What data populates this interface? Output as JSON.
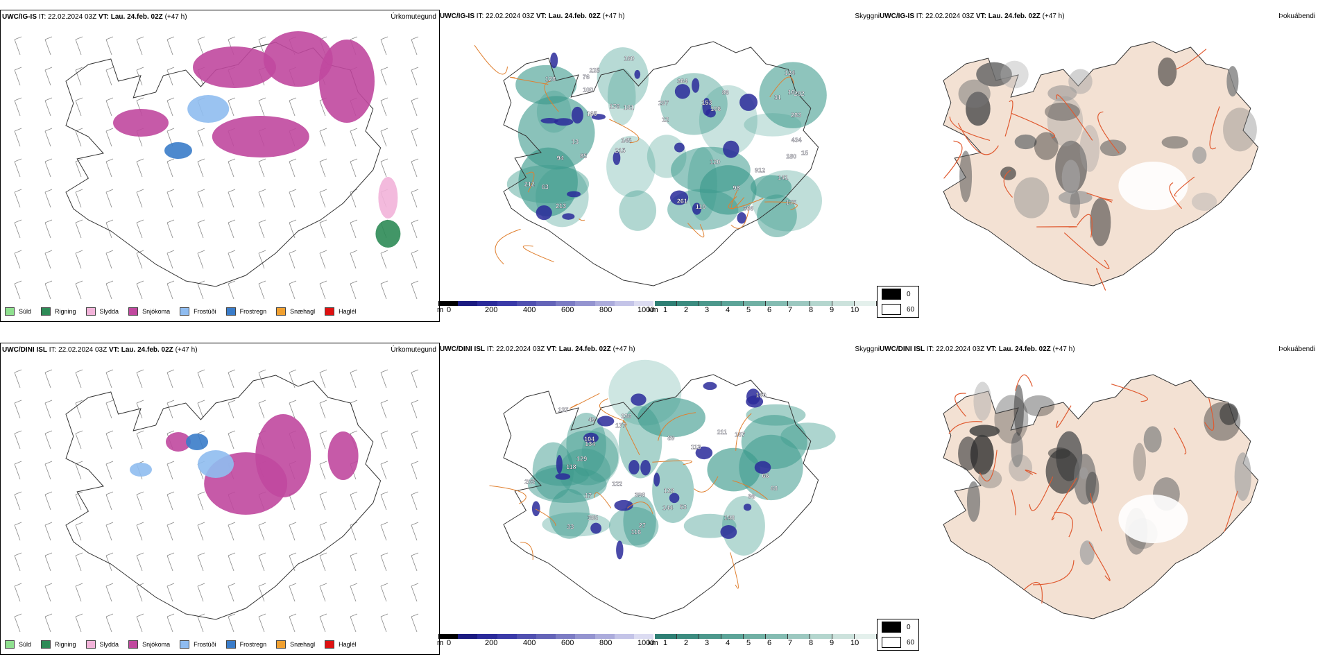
{
  "colors": {
    "sudl": "#8fe08f",
    "rigning": "#2e8b57",
    "slydda": "#f2b3d9",
    "snjokoma": "#c0489e",
    "frostudi": "#8fbcf0",
    "frostregn": "#3a7cc9",
    "snaehagl": "#f0a030",
    "haglel": "#e01010",
    "cloud_teal": "#3c9a8c",
    "ceiling_blue": "#2a2a9a",
    "road": "#e08030",
    "land": "#f3e1d3"
  },
  "rows": [
    {
      "model": "UWC/IG-IS",
      "it_label": "IT:",
      "it_value": "22.02.2024 03Z",
      "vt_label": "VT:",
      "vt_value": "Lau. 24.feb. 02Z",
      "lead": "(+47 h)",
      "title_precip": "Úrkomutegund",
      "title_cloud": "Skyggni",
      "title_fog": "Þokuábendi",
      "ceiling_labels": [
        "13",
        "15",
        "16",
        "31",
        "165",
        "283",
        "12",
        "94",
        "63",
        "176",
        "212",
        "110",
        "106",
        "100",
        "124",
        "141",
        "128",
        "145",
        "160",
        "175",
        "85",
        "101",
        "213",
        "912",
        "225",
        "434",
        "364",
        "215",
        "666",
        "86",
        "202",
        "180",
        "153",
        "297",
        "98",
        "120",
        "76",
        "261"
      ]
    },
    {
      "model": "UWC/DINI ISL",
      "it_label": "IT:",
      "it_value": "22.02.2024 03Z",
      "vt_label": "VT:",
      "vt_value": "Lau. 24.feb. 02Z",
      "lead": "(+47 h)",
      "title_precip": "Úrkomutegund",
      "title_cloud": "Skyggni",
      "title_fog": "Þokuábendi",
      "ceiling_labels": [
        "140",
        "134",
        "128",
        "116",
        "104",
        "167",
        "113",
        "122",
        "17",
        "98",
        "66",
        "49",
        "177",
        "118",
        "137",
        "89",
        "53",
        "385",
        "211",
        "398",
        "68",
        "129",
        "203",
        "27",
        "136",
        "148",
        "33",
        "144"
      ]
    }
  ],
  "legend": [
    {
      "label": "Súld",
      "color_key": "sudl"
    },
    {
      "label": "Rigning",
      "color_key": "rigning"
    },
    {
      "label": "Slydda",
      "color_key": "slydda"
    },
    {
      "label": "Snjókoma",
      "color_key": "snjokoma"
    },
    {
      "label": "Frostúði",
      "color_key": "frostudi"
    },
    {
      "label": "Frostregn",
      "color_key": "frostregn"
    },
    {
      "label": "Snæhagl",
      "color_key": "snaehagl"
    },
    {
      "label": "Haglél",
      "color_key": "haglel"
    }
  ],
  "ceiling_scale": {
    "unit": "m",
    "ticks": [
      "0",
      "200",
      "400",
      "600",
      "800",
      "1000"
    ]
  },
  "visibility_scale": {
    "unit": "km",
    "ticks": [
      "1",
      "2",
      "3",
      "4",
      "5",
      "6",
      "7",
      "8",
      "9",
      "10"
    ]
  },
  "fog_scale": {
    "ticks": [
      "0",
      "60"
    ]
  }
}
